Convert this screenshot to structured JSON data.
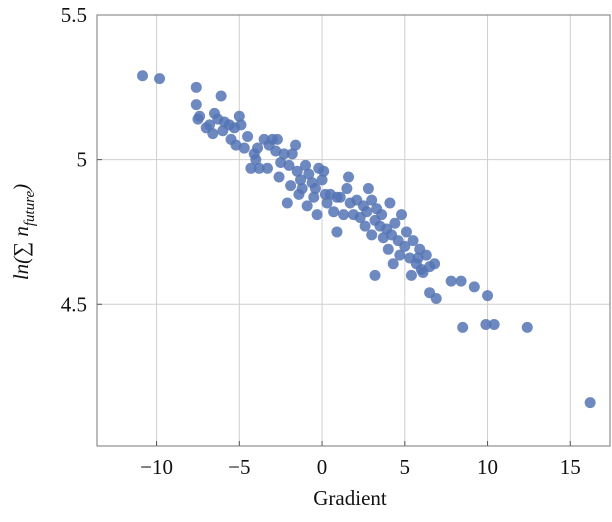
{
  "chart_data": {
    "type": "scatter",
    "x_label": "Gradient",
    "y_label": "ln(∑ n",
    "y_label_sub": "future",
    "y_label_end": ")",
    "color": "#5574b4",
    "grid": true,
    "xlim": [
      -13.6,
      17.4
    ],
    "ylim": [
      4.01,
      5.5
    ],
    "xticks": [
      {
        "value": -10,
        "label": "−10"
      },
      {
        "value": -5,
        "label": "−5"
      },
      0,
      5,
      10,
      15
    ],
    "yticks": [
      4.5,
      5,
      5.5
    ],
    "x": [
      -10.85,
      -9.82,
      -7.6,
      -7.6,
      -7.4,
      -7.5,
      -6.1,
      -6.5,
      -6.8,
      -7.0,
      -6.6,
      -6.3,
      -5.9,
      -5.6,
      -5.3,
      -5.0,
      -4.9,
      -5.5,
      -6.0,
      -5.2,
      -4.7,
      -4.5,
      -4.1,
      -3.9,
      -3.5,
      -3.2,
      -3.0,
      -2.8,
      -2.5,
      -2.3,
      -2.0,
      -1.8,
      -1.6,
      -1.5,
      -1.3,
      -1.0,
      -0.8,
      -0.6,
      -0.4,
      -0.2,
      0.0,
      0.2,
      -0.5,
      -1.2,
      -1.9,
      -2.1,
      -2.6,
      -3.3,
      -3.8,
      -4.0,
      -0.9,
      -0.3,
      0.3,
      0.5,
      0.7,
      0.9,
      1.1,
      0.9,
      1.3,
      1.5,
      1.7,
      1.9,
      2.1,
      2.3,
      2.5,
      2.7,
      2.8,
      3.0,
      3.2,
      3.3,
      3.5,
      3.6,
      3.7,
      3.9,
      4.0,
      4.2,
      4.4,
      4.6,
      4.8,
      5.0,
      5.1,
      5.3,
      5.5,
      5.7,
      5.9,
      6.1,
      6.3,
      6.5,
      6.8,
      4.3,
      3.2,
      5.4,
      6.0,
      7.8,
      8.4,
      9.2,
      10.0,
      6.5,
      6.9,
      8.5,
      9.9,
      10.4,
      12.4,
      16.2,
      1.6,
      0.1,
      -4.3,
      -2.7,
      -1.4,
      2.6,
      4.1,
      3.0,
      5.8,
      4.7
    ],
    "values": [
      5.29,
      5.28,
      5.25,
      5.19,
      5.15,
      5.14,
      5.22,
      5.16,
      5.12,
      5.11,
      5.09,
      5.14,
      5.13,
      5.12,
      5.11,
      5.15,
      5.12,
      5.07,
      5.1,
      5.05,
      5.04,
      5.08,
      5.02,
      5.04,
      5.07,
      5.05,
      5.07,
      5.03,
      4.99,
      5.02,
      4.98,
      5.02,
      5.05,
      4.96,
      4.93,
      4.98,
      4.95,
      4.92,
      4.9,
      4.97,
      4.93,
      4.88,
      4.87,
      4.9,
      4.91,
      4.85,
      4.94,
      4.97,
      4.97,
      5.0,
      4.84,
      4.81,
      4.85,
      4.88,
      4.82,
      4.87,
      4.87,
      4.75,
      4.81,
      4.9,
      4.85,
      4.81,
      4.86,
      4.8,
      4.84,
      4.82,
      4.9,
      4.86,
      4.79,
      4.83,
      4.77,
      4.81,
      4.73,
      4.76,
      4.69,
      4.74,
      4.78,
      4.72,
      4.81,
      4.7,
      4.75,
      4.66,
      4.72,
      4.64,
      4.69,
      4.61,
      4.67,
      4.63,
      4.64,
      4.64,
      4.6,
      4.6,
      4.62,
      4.58,
      4.58,
      4.56,
      4.53,
      4.54,
      4.52,
      4.42,
      4.43,
      4.43,
      4.42,
      4.16,
      4.94,
      4.96,
      4.97,
      5.07,
      4.88,
      4.77,
      4.85,
      4.74,
      4.66,
      4.67
    ]
  }
}
